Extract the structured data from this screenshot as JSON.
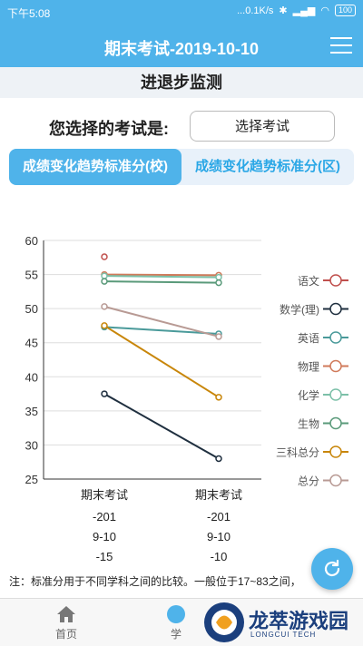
{
  "status_bar": {
    "time": "下午5:08",
    "network": "...0.1K/s",
    "battery": "100"
  },
  "header": {
    "title": "期末考试-2019-10-10"
  },
  "subtitle": "进退步监测",
  "exam_select": {
    "label": "您选择的考试是:",
    "button": "选择考试"
  },
  "tabs": [
    {
      "label": "成绩变化趋势标准分(校)",
      "active": true
    },
    {
      "label": "成绩变化趋势标准分(区)",
      "active": false
    }
  ],
  "chart_data": {
    "type": "line",
    "categories": [
      "期末考试",
      "期末考试"
    ],
    "category_sublabels": [
      [
        "-201",
        "9-10",
        "-15"
      ],
      [
        "-201",
        "9-10",
        "-10"
      ]
    ],
    "ylim": [
      25,
      60
    ],
    "yticks": [
      25,
      30,
      35,
      40,
      45,
      50,
      55,
      60
    ],
    "legend_position": "right",
    "series": [
      {
        "name": "语文",
        "color": "#c0504d",
        "values": [
          57.6,
          null
        ]
      },
      {
        "name": "数学(理)",
        "color": "#1f2f3f",
        "values": [
          37.5,
          28.0
        ]
      },
      {
        "name": "英语",
        "color": "#4a9a9a",
        "values": [
          47.3,
          46.3
        ]
      },
      {
        "name": "物理",
        "color": "#d07a5a",
        "values": [
          55.0,
          54.9
        ]
      },
      {
        "name": "化学",
        "color": "#7cc0a8",
        "values": [
          54.8,
          54.6
        ]
      },
      {
        "name": "生物",
        "color": "#5a9a7a",
        "values": [
          54.0,
          53.8
        ]
      },
      {
        "name": "三科总分",
        "color": "#c8860a",
        "values": [
          47.5,
          37.0
        ]
      },
      {
        "name": "总分",
        "color": "#b89a94",
        "values": [
          50.3,
          45.9
        ]
      }
    ]
  },
  "footnote": "注：标准分用于不同学科之间的比较。一般位于17~83之间，",
  "bottom_nav": [
    {
      "label": "首页",
      "icon": "home-icon"
    },
    {
      "label": "学",
      "icon": "study-icon"
    }
  ],
  "watermark": {
    "text": "龙萃游戏园",
    "sub": "LONGCUI TECH"
  }
}
